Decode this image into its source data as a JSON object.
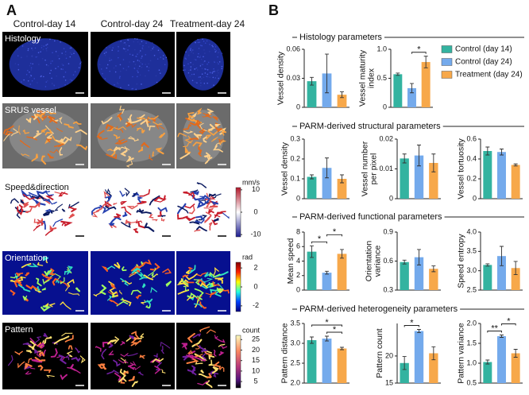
{
  "panel_labels": [
    "A",
    "B"
  ],
  "panel_a": {
    "columns": [
      "Control-day 14",
      "Control-day 24",
      "Treatment-day 24"
    ],
    "rows": [
      "Histology",
      "SRUS vessel",
      "Speed&direction",
      "Orientation",
      "Pattern"
    ],
    "colorbars": [
      {
        "unit": "mm/s",
        "lim": [
          -11,
          11
        ],
        "ticks": [
          10,
          0,
          -10
        ]
      },
      {
        "unit": "rad",
        "lim": [
          -2.6,
          2.6
        ],
        "ticks": [
          2,
          0,
          -2
        ]
      },
      {
        "unit": "count",
        "lim": [
          2,
          27
        ],
        "ticks": [
          25,
          20,
          15,
          10,
          5
        ]
      }
    ]
  },
  "sections": [
    "Histology parameters",
    "PARM-derived structural parameters",
    "PARM-derived functional parameters",
    "PARM-derived heterogeneity parameters"
  ],
  "legend": [
    {
      "name": "Control (day 14)",
      "color": "#33b3a0"
    },
    {
      "name": "Control (day 24)",
      "color": "#74aaec"
    },
    {
      "name": "Treatment (day 24)",
      "color": "#f7a84a"
    }
  ],
  "chart_data": [
    {
      "type": "bar",
      "ylabel": [
        "Vessel density"
      ],
      "values": [
        0.027,
        0.035,
        0.013
      ],
      "errors": [
        0.004,
        0.02,
        0.003
      ],
      "ylim": [
        0,
        0.06
      ],
      "yticks": [
        0,
        0.03,
        0.06
      ],
      "significance": []
    },
    {
      "type": "bar",
      "ylabel": [
        "Vessel maturity",
        "index"
      ],
      "values": [
        0.57,
        0.33,
        0.78
      ],
      "errors": [
        0.02,
        0.08,
        0.1
      ],
      "ylim": [
        0,
        1
      ],
      "yticks": [
        0,
        0.5,
        {
          "value": 1,
          "label": "1.0"
        }
      ],
      "significance": [
        {
          "text": "*",
          "groups": [
            1,
            2
          ]
        }
      ]
    },
    {
      "type": "bar",
      "ylabel": [
        "Vessel density"
      ],
      "values": [
        0.11,
        0.155,
        0.1
      ],
      "errors": [
        0.01,
        0.05,
        0.02
      ],
      "ylim": [
        0,
        0.3
      ],
      "yticks": [
        0,
        0.1,
        0.2,
        0.3
      ],
      "significance": []
    },
    {
      "type": "bar",
      "ylabel": [
        "Vessel number",
        "per pixel"
      ],
      "values": [
        0.0135,
        0.0145,
        0.012
      ],
      "errors": [
        0.0015,
        0.0035,
        0.003
      ],
      "ylim": [
        0,
        0.02
      ],
      "yticks": [
        0,
        0.01,
        0.02
      ],
      "significance": []
    },
    {
      "type": "bar",
      "ylabel": [
        "Vessel tortuosity"
      ],
      "values": [
        0.48,
        0.47,
        0.34
      ],
      "errors": [
        0.04,
        0.03,
        0.01
      ],
      "ylim": [
        0,
        0.6
      ],
      "yticks": [
        0,
        0.2,
        0.4,
        0.6
      ],
      "significance": []
    },
    {
      "type": "bar",
      "ylabel": [
        "Mean speed"
      ],
      "values": [
        5.3,
        2.4,
        5.0
      ],
      "errors": [
        0.8,
        0.2,
        0.6
      ],
      "ylim": [
        0,
        8
      ],
      "yticks": [
        0,
        2,
        4,
        6,
        8
      ],
      "significance": [
        {
          "text": "*",
          "groups": [
            0,
            1
          ]
        },
        {
          "text": "*",
          "groups": [
            1,
            2
          ]
        }
      ]
    },
    {
      "type": "bar",
      "ylabel": [
        "Orientation",
        "variance"
      ],
      "values": [
        0.59,
        0.64,
        0.52
      ],
      "errors": [
        0.02,
        0.08,
        0.03
      ],
      "ylim": [
        0.3,
        0.9
      ],
      "yticks": [
        0.3,
        0.6,
        0.9
      ],
      "significance": []
    },
    {
      "type": "bar",
      "ylabel": [
        "Speed entropy"
      ],
      "values": [
        3.15,
        3.38,
        3.07
      ],
      "errors": [
        0.03,
        0.25,
        0.17
      ],
      "ylim": [
        2.5,
        4
      ],
      "yticks": [
        2.5,
        {
          "value": 3,
          "label": "3.0"
        },
        3.5,
        {
          "value": 4,
          "label": "4.0"
        }
      ],
      "significance": []
    },
    {
      "type": "bar",
      "ylabel": [
        "Pattern distance"
      ],
      "values": [
        3.08,
        3.12,
        2.87
      ],
      "errors": [
        0.08,
        0.06,
        0.03
      ],
      "ylim": [
        2,
        3.5
      ],
      "yticks": [
        {
          "value": 2,
          "label": "2.0"
        },
        2.5,
        {
          "value": 3,
          "label": "3.0"
        },
        3.5
      ],
      "significance": [
        {
          "text": "*",
          "groups": [
            1,
            2
          ]
        },
        {
          "text": "*",
          "groups": [
            0,
            2
          ]
        }
      ]
    },
    {
      "type": "bar",
      "ylabel": [
        "Pattern count"
      ],
      "values": [
        18.7,
        24.6,
        20.5
      ],
      "errors": [
        1.2,
        0.3,
        1.2
      ],
      "ylim": [
        15,
        26
      ],
      "yticks": [
        15,
        20
      ],
      "significance": [
        {
          "text": "*",
          "groups": [
            0,
            1
          ]
        }
      ]
    },
    {
      "type": "bar",
      "ylabel": [
        "Pattern variance"
      ],
      "values": [
        1.03,
        1.68,
        1.25
      ],
      "errors": [
        0.05,
        0.03,
        0.1
      ],
      "ylim": [
        0.5,
        2
      ],
      "yticks": [
        0.5,
        {
          "value": 1,
          "label": "1.0"
        },
        1.5,
        {
          "value": 2,
          "label": "2.0"
        }
      ],
      "significance": [
        {
          "text": "**",
          "groups": [
            0,
            1
          ]
        },
        {
          "text": "*",
          "groups": [
            1,
            2
          ]
        }
      ]
    }
  ]
}
